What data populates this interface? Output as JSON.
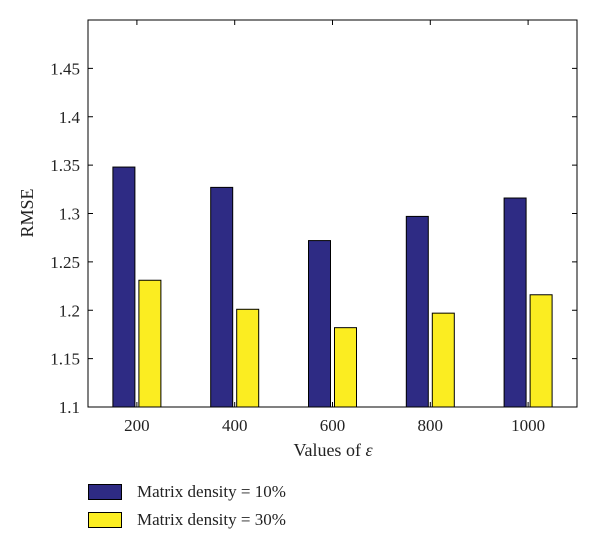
{
  "chart_data": {
    "type": "bar",
    "categories": [
      "200",
      "400",
      "600",
      "800",
      "1000"
    ],
    "series": [
      {
        "name": "Matrix density = 10%",
        "values": [
          1.348,
          1.327,
          1.272,
          1.297,
          1.316
        ],
        "color": "#2e2b84"
      },
      {
        "name": "Matrix density = 30%",
        "values": [
          1.231,
          1.201,
          1.182,
          1.197,
          1.216
        ],
        "color": "#fbed21"
      }
    ],
    "xlabel_prefix": "Values of ",
    "xlabel_symbol": "ε",
    "ylabel": "RMSE",
    "ylim": [
      1.1,
      1.5
    ],
    "yticks": [
      "1.1",
      "1.15",
      "1.2",
      "1.25",
      "1.3",
      "1.35",
      "1.4",
      "1.45"
    ],
    "grid": false,
    "legend_position": "bottom-left"
  }
}
